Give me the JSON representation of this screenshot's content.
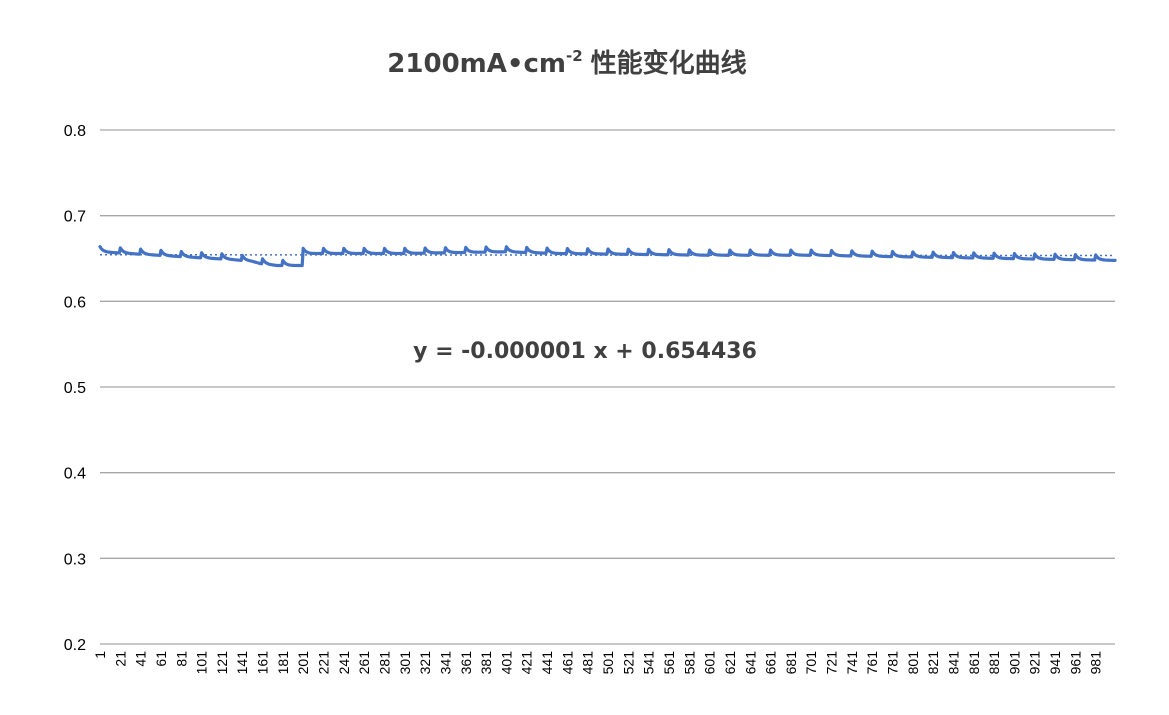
{
  "chart_data": {
    "type": "line",
    "title": {
      "main": "2100mA•cm",
      "superscript": "-2",
      "suffix": "性能变化曲线"
    },
    "xlabel": "",
    "ylabel": "",
    "ylim": [
      0.2,
      0.8
    ],
    "y_ticks": [
      "0.2",
      "0.3",
      "0.4",
      "0.5",
      "0.6",
      "0.7",
      "0.8"
    ],
    "x_range": [
      1,
      1000
    ],
    "x_ticks": [
      "1",
      "21",
      "41",
      "61",
      "81",
      "101",
      "121",
      "141",
      "161",
      "181",
      "201",
      "221",
      "241",
      "261",
      "281",
      "301",
      "321",
      "341",
      "361",
      "381",
      "401",
      "421",
      "441",
      "461",
      "481",
      "501",
      "521",
      "541",
      "561",
      "581",
      "601",
      "621",
      "641",
      "661",
      "681",
      "701",
      "721",
      "741",
      "761",
      "781",
      "801",
      "821",
      "841",
      "861",
      "881",
      "901",
      "921",
      "941",
      "961",
      "981"
    ],
    "grid": true,
    "legend": "none",
    "series": [
      {
        "color": "#4472C4",
        "sawtooth_period": 20,
        "points": [
          {
            "x": 1,
            "y": 0.659
          },
          {
            "x": 100,
            "y": 0.652
          },
          {
            "x": 130,
            "y": 0.65
          },
          {
            "x": 150,
            "y": 0.648
          },
          {
            "x": 160,
            "y": 0.645
          },
          {
            "x": 175,
            "y": 0.643
          },
          {
            "x": 200,
            "y": 0.643
          },
          {
            "x": 201,
            "y": 0.657
          },
          {
            "x": 300,
            "y": 0.657
          },
          {
            "x": 400,
            "y": 0.659
          },
          {
            "x": 450,
            "y": 0.657
          },
          {
            "x": 600,
            "y": 0.655
          },
          {
            "x": 700,
            "y": 0.655
          },
          {
            "x": 800,
            "y": 0.653
          },
          {
            "x": 900,
            "y": 0.651
          },
          {
            "x": 1000,
            "y": 0.649
          }
        ]
      }
    ],
    "trendline": {
      "equation": "y = -0.000001 x + 0.654436",
      "slope": -1e-06,
      "intercept": 0.654436,
      "style": "dotted",
      "color": "#4472C4"
    }
  }
}
